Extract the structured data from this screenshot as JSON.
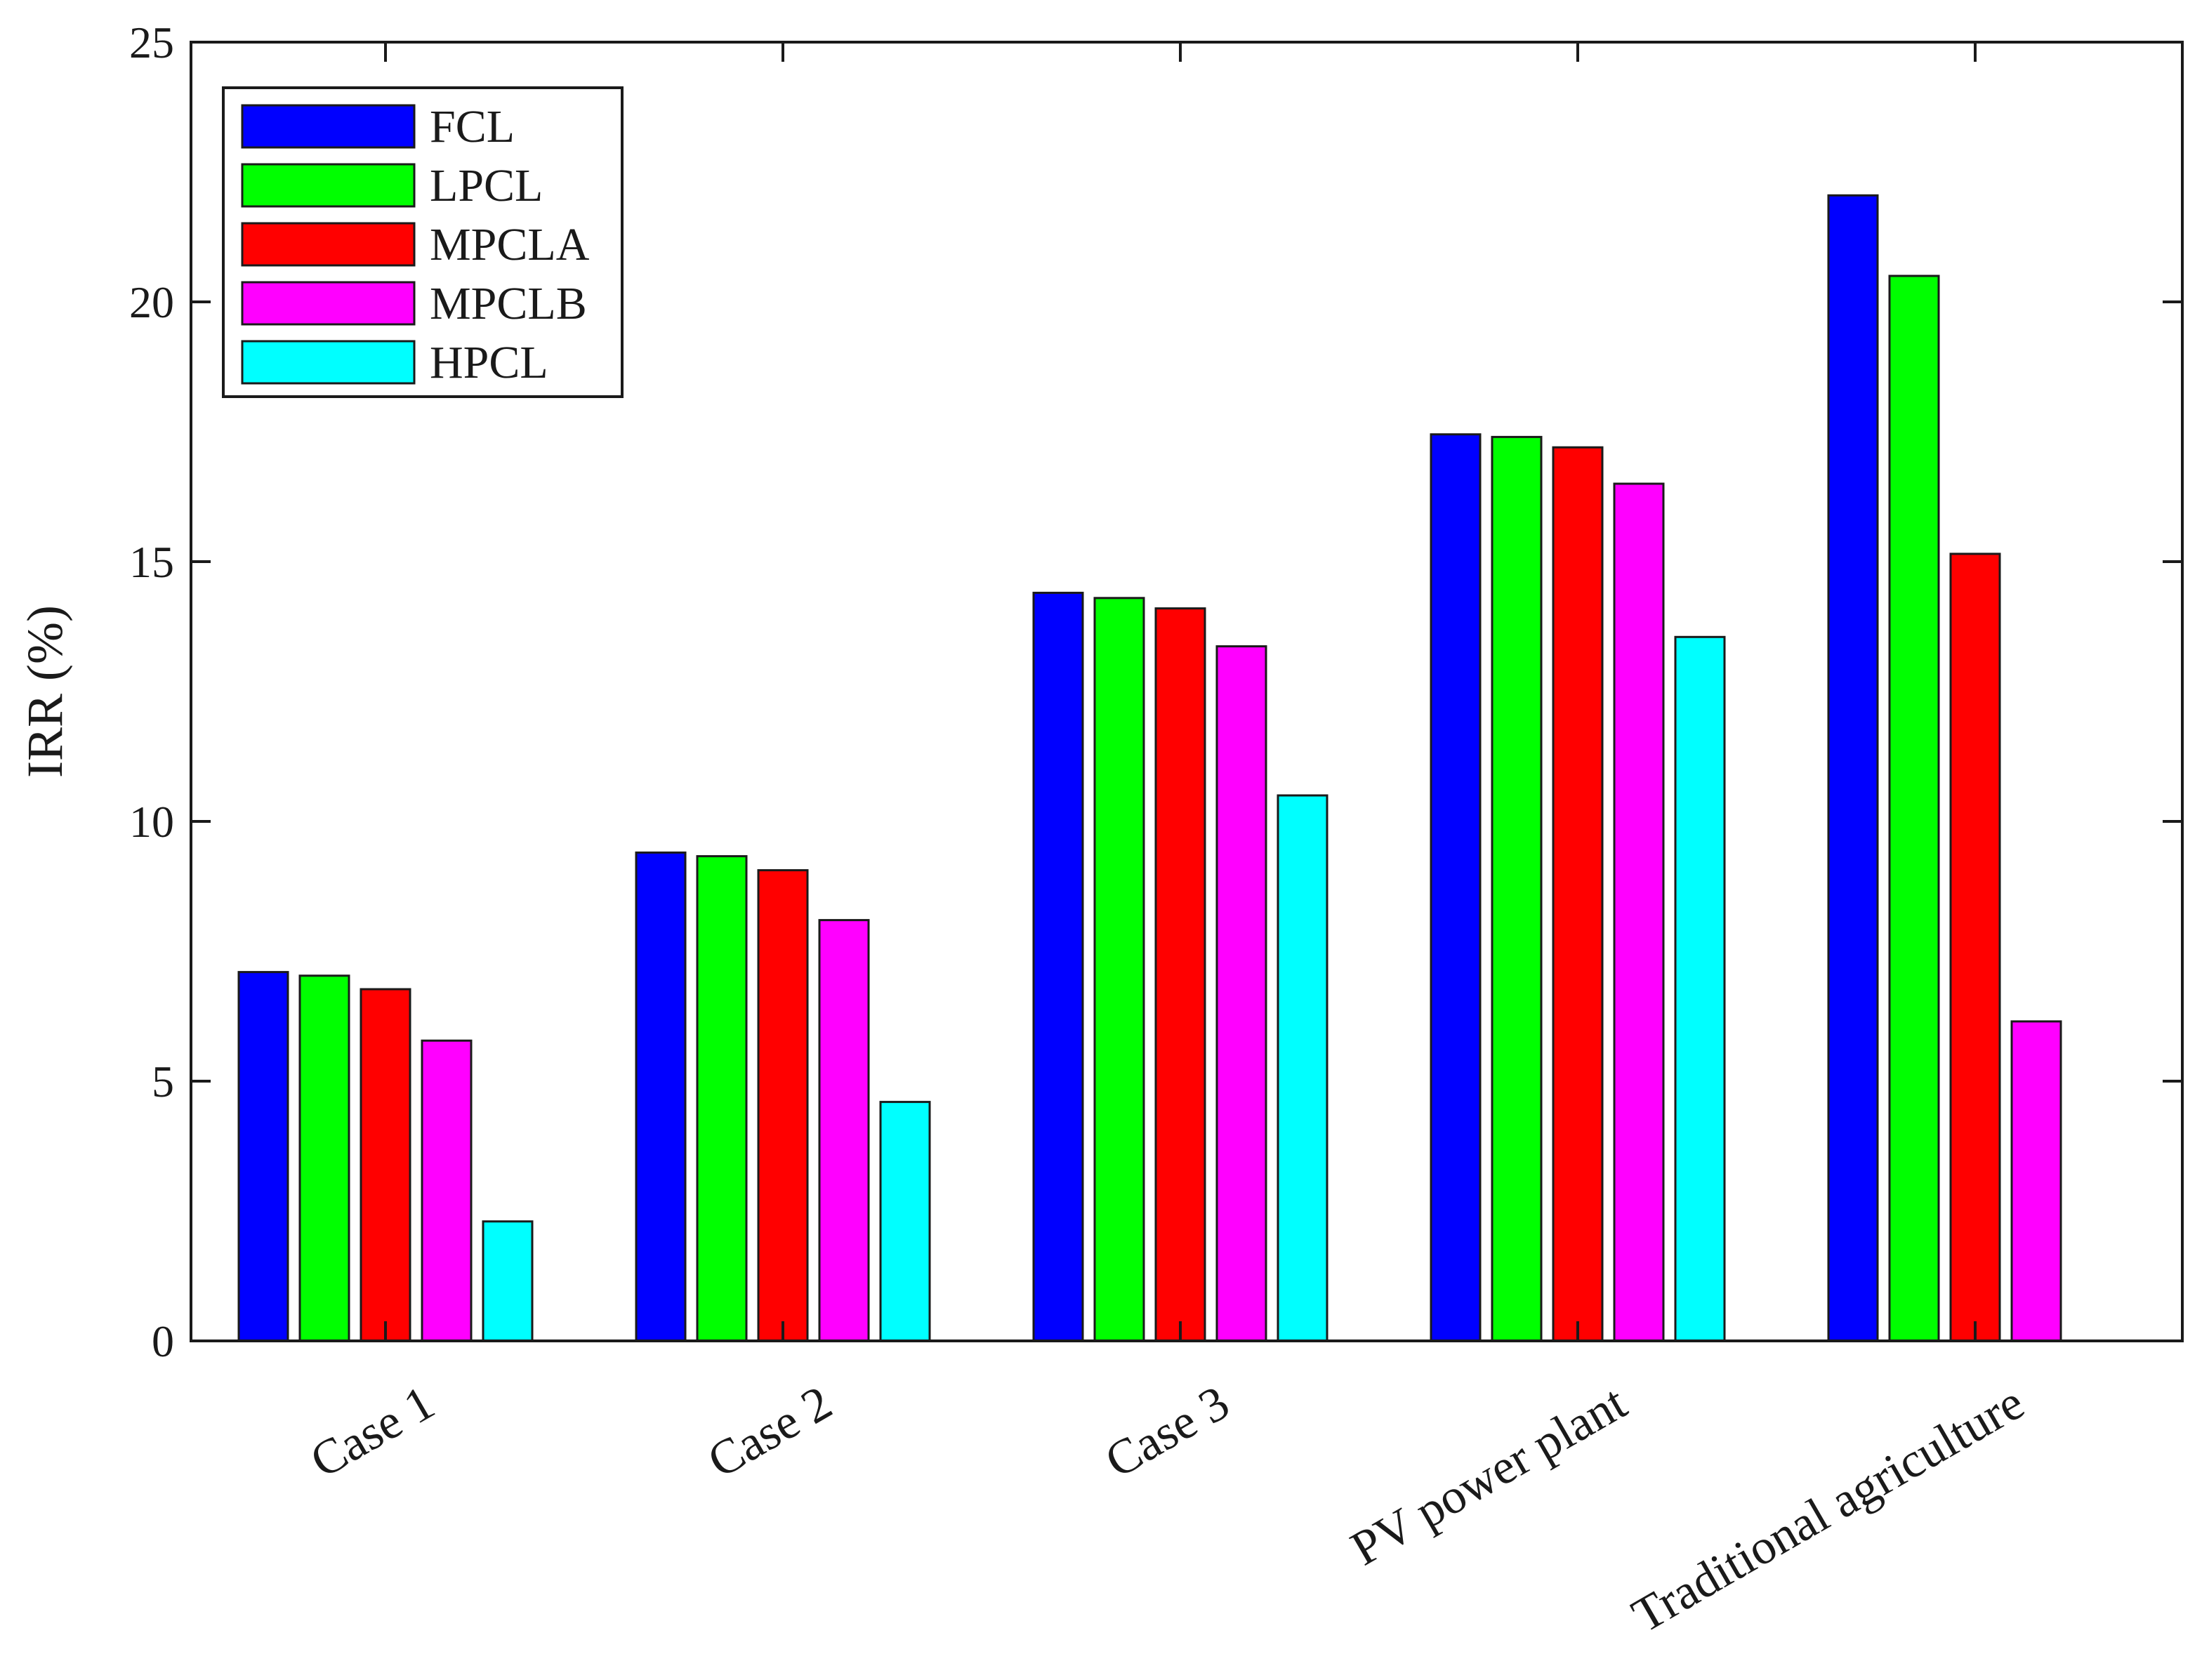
{
  "chart_data": {
    "type": "bar",
    "title": "",
    "xlabel": "",
    "ylabel": "IRR (%)",
    "ylim": [
      0,
      25
    ],
    "yticks": [
      0,
      5,
      10,
      15,
      20,
      25
    ],
    "grid": false,
    "legend_position": "top-left",
    "categories": [
      "Case 1",
      "Case 2",
      "Case 3",
      "PV power plant",
      "Traditional agriculture"
    ],
    "series": [
      {
        "name": "FCL",
        "color": "#0000ff",
        "values": [
          7.1,
          9.4,
          14.4,
          17.45,
          22.05
        ]
      },
      {
        "name": "LPCL",
        "color": "#00ff00",
        "values": [
          7.03,
          9.33,
          14.3,
          17.4,
          20.5
        ]
      },
      {
        "name": "MPCLA",
        "color": "#ff0000",
        "values": [
          6.77,
          9.06,
          14.1,
          17.2,
          15.15
        ]
      },
      {
        "name": "MPCLB",
        "color": "#ff00ff",
        "values": [
          5.78,
          8.1,
          13.37,
          16.5,
          6.15
        ]
      },
      {
        "name": "HPCL",
        "color": "#00ffff",
        "values": [
          2.3,
          4.6,
          10.5,
          13.55,
          null
        ]
      }
    ]
  }
}
